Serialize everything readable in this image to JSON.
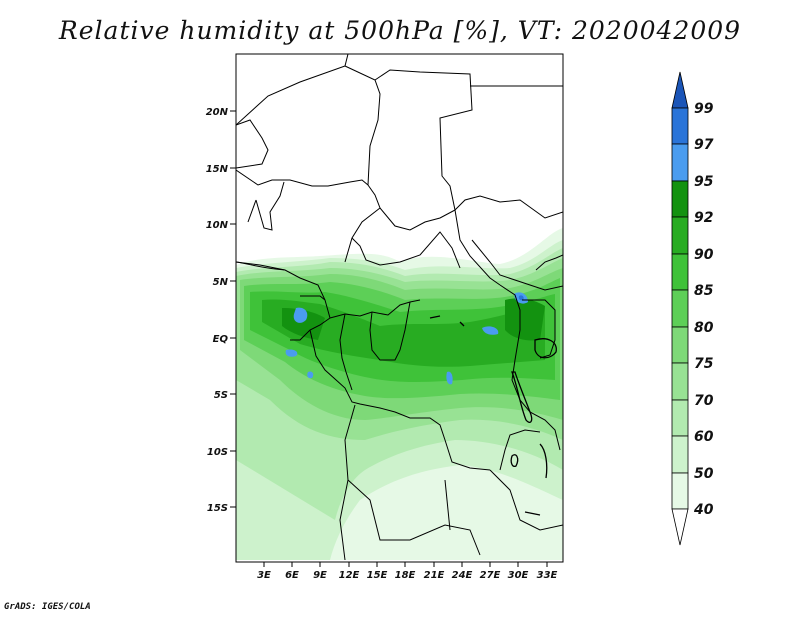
{
  "title": "Relative humidity at 500hPa [%], VT: 2020042009",
  "footer": "GrADS: IGES/COLA",
  "map": {
    "lat_ticks": [
      "20N",
      "15N",
      "10N",
      "5N",
      "EQ",
      "5S",
      "10S",
      "15S"
    ],
    "lon_ticks": [
      "3E",
      "6E",
      "9E",
      "12E",
      "15E",
      "18E",
      "21E",
      "24E",
      "27E",
      "30E",
      "33E"
    ]
  },
  "colorbar": {
    "labels": [
      "99",
      "97",
      "95",
      "92",
      "90",
      "85",
      "80",
      "75",
      "70",
      "60",
      "50",
      "40"
    ],
    "colors": {
      "c40_50": "#e6f9e6",
      "c50_60": "#cdf2cc",
      "c60_70": "#b2eab0",
      "c70_75": "#98e294",
      "c75_80": "#7ed978",
      "c80_85": "#5dcf57",
      "c85_90": "#3fc239",
      "c90_92": "#28ac22",
      "c92_95": "#139210",
      "c95_97": "#4a9cef",
      "c97_99": "#2a74d8",
      "c99": "#1a55b8"
    }
  }
}
